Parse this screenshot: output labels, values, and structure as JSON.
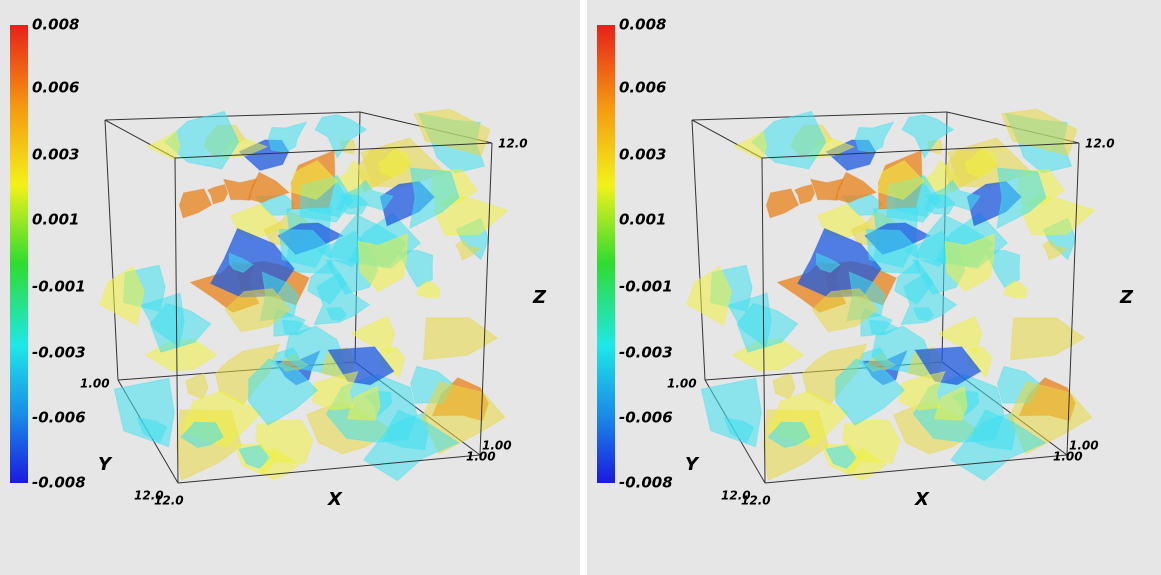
{
  "panels": [
    {
      "colorbar_labels": [
        "0.008",
        "0.006",
        "0.003",
        "0.001",
        "-0.001",
        "-0.003",
        "-0.006",
        "-0.008"
      ],
      "axis_titles": {
        "x": "X",
        "y": "Y",
        "z": "Z"
      },
      "box_labels": [
        "1.00",
        "12.0",
        "1.00",
        "1.00",
        "12.0",
        "12.0"
      ]
    },
    {
      "colorbar_labels": [
        "0.008",
        "0.006",
        "0.003",
        "0.001",
        "-0.001",
        "-0.003",
        "-0.006",
        "-0.008"
      ],
      "axis_titles": {
        "x": "X",
        "y": "Y",
        "z": "Z"
      },
      "box_labels": [
        "1.00",
        "12.0",
        "1.00",
        "1.00",
        "12.0",
        "12.0"
      ]
    }
  ]
}
